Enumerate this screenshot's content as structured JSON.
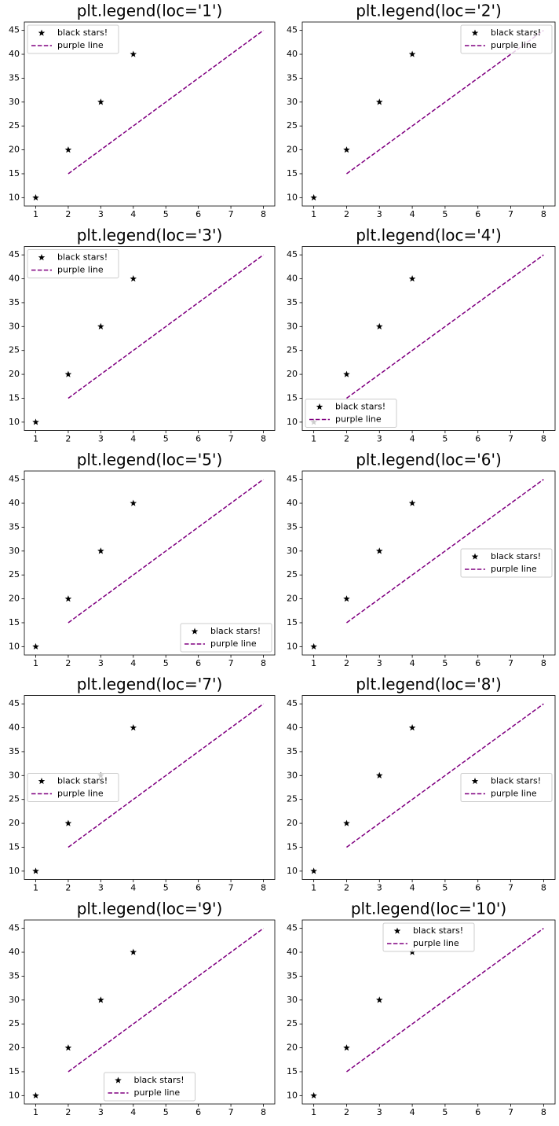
{
  "chart_data": [
    {
      "type": "line",
      "title": "plt.legend(loc='1')",
      "legend_loc": "upper left",
      "xlim": [
        0.65,
        8.35
      ],
      "ylim": [
        8.25,
        46.75
      ],
      "xticks": [
        1,
        2,
        3,
        4,
        5,
        6,
        7,
        8
      ],
      "yticks": [
        10,
        15,
        20,
        25,
        30,
        35,
        40,
        45
      ],
      "series": [
        {
          "name": "black stars!",
          "color": "#000000",
          "style": "markers",
          "x": [
            1,
            2,
            3,
            4
          ],
          "values": [
            10,
            20,
            30,
            40
          ]
        },
        {
          "name": "purple line",
          "color": "#800080",
          "style": "dashed",
          "x": [
            2,
            3,
            4,
            5,
            6,
            7,
            8
          ],
          "values": [
            15,
            20,
            25,
            30,
            35,
            40,
            45
          ]
        }
      ]
    },
    {
      "type": "line",
      "title": "plt.legend(loc='2')",
      "legend_loc": "upper right",
      "xlim": [
        0.65,
        8.35
      ],
      "ylim": [
        8.25,
        46.75
      ],
      "xticks": [
        1,
        2,
        3,
        4,
        5,
        6,
        7,
        8
      ],
      "yticks": [
        10,
        15,
        20,
        25,
        30,
        35,
        40,
        45
      ],
      "series": [
        {
          "name": "black stars!",
          "color": "#000000",
          "style": "markers",
          "x": [
            1,
            2,
            3,
            4
          ],
          "values": [
            10,
            20,
            30,
            40
          ]
        },
        {
          "name": "purple line",
          "color": "#800080",
          "style": "dashed",
          "x": [
            2,
            3,
            4,
            5,
            6,
            7,
            8
          ],
          "values": [
            15,
            20,
            25,
            30,
            35,
            40,
            45
          ]
        }
      ]
    },
    {
      "type": "line",
      "title": "plt.legend(loc='3')",
      "legend_loc": "upper left",
      "xlim": [
        0.65,
        8.35
      ],
      "ylim": [
        8.25,
        46.75
      ],
      "xticks": [
        1,
        2,
        3,
        4,
        5,
        6,
        7,
        8
      ],
      "yticks": [
        10,
        15,
        20,
        25,
        30,
        35,
        40,
        45
      ],
      "series": [
        {
          "name": "black stars!",
          "color": "#000000",
          "style": "markers",
          "x": [
            1,
            2,
            3,
            4
          ],
          "values": [
            10,
            20,
            30,
            40
          ]
        },
        {
          "name": "purple line",
          "color": "#800080",
          "style": "dashed",
          "x": [
            2,
            3,
            4,
            5,
            6,
            7,
            8
          ],
          "values": [
            15,
            20,
            25,
            30,
            35,
            40,
            45
          ]
        }
      ]
    },
    {
      "type": "line",
      "title": "plt.legend(loc='4')",
      "legend_loc": "lower left",
      "xlim": [
        0.65,
        8.35
      ],
      "ylim": [
        8.25,
        46.75
      ],
      "xticks": [
        1,
        2,
        3,
        4,
        5,
        6,
        7,
        8
      ],
      "yticks": [
        10,
        15,
        20,
        25,
        30,
        35,
        40,
        45
      ],
      "series": [
        {
          "name": "black stars!",
          "color": "#000000",
          "style": "markers",
          "x": [
            1,
            2,
            3,
            4
          ],
          "values": [
            10,
            20,
            30,
            40
          ]
        },
        {
          "name": "purple line",
          "color": "#800080",
          "style": "dashed",
          "x": [
            2,
            3,
            4,
            5,
            6,
            7,
            8
          ],
          "values": [
            15,
            20,
            25,
            30,
            35,
            40,
            45
          ]
        }
      ]
    },
    {
      "type": "line",
      "title": "plt.legend(loc='5')",
      "legend_loc": "lower right",
      "xlim": [
        0.65,
        8.35
      ],
      "ylim": [
        8.25,
        46.75
      ],
      "xticks": [
        1,
        2,
        3,
        4,
        5,
        6,
        7,
        8
      ],
      "yticks": [
        10,
        15,
        20,
        25,
        30,
        35,
        40,
        45
      ],
      "series": [
        {
          "name": "black stars!",
          "color": "#000000",
          "style": "markers",
          "x": [
            1,
            2,
            3,
            4
          ],
          "values": [
            10,
            20,
            30,
            40
          ]
        },
        {
          "name": "purple line",
          "color": "#800080",
          "style": "dashed",
          "x": [
            2,
            3,
            4,
            5,
            6,
            7,
            8
          ],
          "values": [
            15,
            20,
            25,
            30,
            35,
            40,
            45
          ]
        }
      ]
    },
    {
      "type": "line",
      "title": "plt.legend(loc='6')",
      "legend_loc": "center right",
      "xlim": [
        0.65,
        8.35
      ],
      "ylim": [
        8.25,
        46.75
      ],
      "xticks": [
        1,
        2,
        3,
        4,
        5,
        6,
        7,
        8
      ],
      "yticks": [
        10,
        15,
        20,
        25,
        30,
        35,
        40,
        45
      ],
      "series": [
        {
          "name": "black stars!",
          "color": "#000000",
          "style": "markers",
          "x": [
            1,
            2,
            3,
            4
          ],
          "values": [
            10,
            20,
            30,
            40
          ]
        },
        {
          "name": "purple line",
          "color": "#800080",
          "style": "dashed",
          "x": [
            2,
            3,
            4,
            5,
            6,
            7,
            8
          ],
          "values": [
            15,
            20,
            25,
            30,
            35,
            40,
            45
          ]
        }
      ]
    },
    {
      "type": "line",
      "title": "plt.legend(loc='7')",
      "legend_loc": "center left",
      "xlim": [
        0.65,
        8.35
      ],
      "ylim": [
        8.25,
        46.75
      ],
      "xticks": [
        1,
        2,
        3,
        4,
        5,
        6,
        7,
        8
      ],
      "yticks": [
        10,
        15,
        20,
        25,
        30,
        35,
        40,
        45
      ],
      "series": [
        {
          "name": "black stars!",
          "color": "#000000",
          "style": "markers",
          "x": [
            1,
            2,
            3,
            4
          ],
          "values": [
            10,
            20,
            30,
            40
          ]
        },
        {
          "name": "purple line",
          "color": "#800080",
          "style": "dashed",
          "x": [
            2,
            3,
            4,
            5,
            6,
            7,
            8
          ],
          "values": [
            15,
            20,
            25,
            30,
            35,
            40,
            45
          ]
        }
      ]
    },
    {
      "type": "line",
      "title": "plt.legend(loc='8')",
      "legend_loc": "center right",
      "xlim": [
        0.65,
        8.35
      ],
      "ylim": [
        8.25,
        46.75
      ],
      "xticks": [
        1,
        2,
        3,
        4,
        5,
        6,
        7,
        8
      ],
      "yticks": [
        10,
        15,
        20,
        25,
        30,
        35,
        40,
        45
      ],
      "series": [
        {
          "name": "black stars!",
          "color": "#000000",
          "style": "markers",
          "x": [
            1,
            2,
            3,
            4
          ],
          "values": [
            10,
            20,
            30,
            40
          ]
        },
        {
          "name": "purple line",
          "color": "#800080",
          "style": "dashed",
          "x": [
            2,
            3,
            4,
            5,
            6,
            7,
            8
          ],
          "values": [
            15,
            20,
            25,
            30,
            35,
            40,
            45
          ]
        }
      ]
    },
    {
      "type": "line",
      "title": "plt.legend(loc='9')",
      "legend_loc": "lower center",
      "xlim": [
        0.65,
        8.35
      ],
      "ylim": [
        8.25,
        46.75
      ],
      "xticks": [
        1,
        2,
        3,
        4,
        5,
        6,
        7,
        8
      ],
      "yticks": [
        10,
        15,
        20,
        25,
        30,
        35,
        40,
        45
      ],
      "series": [
        {
          "name": "black stars!",
          "color": "#000000",
          "style": "markers",
          "x": [
            1,
            2,
            3,
            4
          ],
          "values": [
            10,
            20,
            30,
            40
          ]
        },
        {
          "name": "purple line",
          "color": "#800080",
          "style": "dashed",
          "x": [
            2,
            3,
            4,
            5,
            6,
            7,
            8
          ],
          "values": [
            15,
            20,
            25,
            30,
            35,
            40,
            45
          ]
        }
      ]
    },
    {
      "type": "line",
      "title": "plt.legend(loc='10')",
      "legend_loc": "upper center",
      "xlim": [
        0.65,
        8.35
      ],
      "ylim": [
        8.25,
        46.75
      ],
      "xticks": [
        1,
        2,
        3,
        4,
        5,
        6,
        7,
        8
      ],
      "yticks": [
        10,
        15,
        20,
        25,
        30,
        35,
        40,
        45
      ],
      "series": [
        {
          "name": "black stars!",
          "color": "#000000",
          "style": "markers",
          "x": [
            1,
            2,
            3,
            4
          ],
          "values": [
            10,
            20,
            30,
            40
          ]
        },
        {
          "name": "purple line",
          "color": "#800080",
          "style": "dashed",
          "x": [
            2,
            3,
            4,
            5,
            6,
            7,
            8
          ],
          "values": [
            15,
            20,
            25,
            30,
            35,
            40,
            45
          ]
        }
      ]
    }
  ]
}
